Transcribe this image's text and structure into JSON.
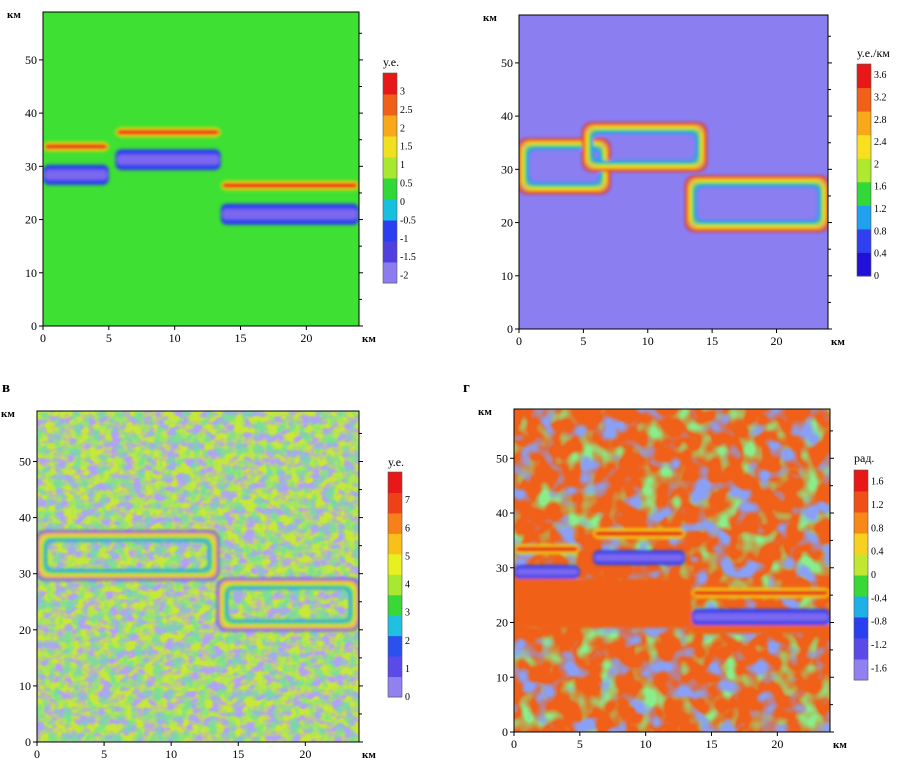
{
  "chart_data": [
    {
      "type": "heatmap",
      "panel_letter": "",
      "x_unit": "км",
      "y_unit": "км",
      "xlim": [
        0,
        24
      ],
      "ylim": [
        0,
        59
      ],
      "x_ticks": [
        "0",
        "5",
        "10",
        "15",
        "20"
      ],
      "y_ticks": [
        "0",
        "10",
        "20",
        "30",
        "40",
        "50"
      ],
      "colorbar": {
        "unit": "у.е.",
        "range": [
          -2.2,
          3.5
        ],
        "ticks": [
          "3",
          "2.5",
          "2",
          "1.5",
          "1",
          "0.5",
          "0",
          "-0.5",
          "-1",
          "-1.5",
          "-2"
        ],
        "colors": [
          "#8c7cf0",
          "#5040e0",
          "#2b3ff0",
          "#18c0e0",
          "#30d838",
          "#a8e830",
          "#f0e020",
          "#f8a818",
          "#f06018",
          "#e81818"
        ]
      },
      "background_color": "#3ee033",
      "texture": "none",
      "bands": [
        {
          "x0": 0,
          "x1": 5,
          "y0": 32.8,
          "y1": 34.6,
          "color": "#f4d810"
        },
        {
          "x0": 0,
          "x1": 5,
          "y0": 26.5,
          "y1": 30.3,
          "color": "#7b68ee"
        },
        {
          "x0": 5.5,
          "x1": 13.5,
          "y0": 35.5,
          "y1": 37.3,
          "color": "#f4d810"
        },
        {
          "x0": 5.5,
          "x1": 13.5,
          "y0": 29.3,
          "y1": 33.2,
          "color": "#7b68ee"
        },
        {
          "x0": 13.5,
          "x1": 24,
          "y0": 25.5,
          "y1": 27.3,
          "color": "#f4d810"
        },
        {
          "x0": 13.5,
          "x1": 24,
          "y0": 19,
          "y1": 23,
          "color": "#7b68ee"
        }
      ]
    },
    {
      "type": "heatmap",
      "panel_letter": "",
      "x_unit": "км",
      "y_unit": "км",
      "xlim": [
        0,
        24
      ],
      "ylim": [
        0,
        59
      ],
      "x_ticks": [
        "0",
        "5",
        "10",
        "15",
        "20"
      ],
      "y_ticks": [
        "0",
        "10",
        "20",
        "30",
        "40",
        "50"
      ],
      "colorbar": {
        "unit": "у.е./км",
        "range": [
          0,
          3.8
        ],
        "ticks": [
          "3.6",
          "3.2",
          "2.8",
          "2.4",
          "2",
          "1.6",
          "1.2",
          "0.8",
          "0.4",
          "0"
        ],
        "colors": [
          "#2010d8",
          "#3040f0",
          "#20a0f0",
          "#30d838",
          "#b0e830",
          "#f8e020",
          "#f8a818",
          "#f06018",
          "#e81818"
        ]
      },
      "background_color": "#8a7ef0",
      "texture": "none",
      "bands": [
        {
          "x0": 0,
          "x1": 7,
          "y0": 25.6,
          "y1": 35.6,
          "color": "#ee2020",
          "ring": true
        },
        {
          "x0": 5,
          "x1": 14.5,
          "y0": 29.8,
          "y1": 38.6,
          "color": "#ee2020",
          "ring": true
        },
        {
          "x0": 13,
          "x1": 24,
          "y0": 18.5,
          "y1": 28.6,
          "color": "#ee2020",
          "ring": true
        }
      ]
    },
    {
      "type": "heatmap",
      "panel_letter": "в",
      "x_unit": "км",
      "y_unit": "км",
      "xlim": [
        0,
        24
      ],
      "ylim": [
        0,
        59
      ],
      "x_ticks": [
        "0",
        "5",
        "10",
        "15",
        "20"
      ],
      "y_ticks": [
        "0",
        "10",
        "20",
        "30",
        "40",
        "50"
      ],
      "colorbar": {
        "unit": "у.е.",
        "range": [
          0,
          8
        ],
        "ticks": [
          "7",
          "6",
          "5",
          "4",
          "3",
          "2",
          "1",
          "0"
        ],
        "colors": [
          "#9080f0",
          "#5a4ae8",
          "#2a50f0",
          "#20c0e0",
          "#38d838",
          "#a8e830",
          "#e8f020",
          "#f8c018",
          "#f88018",
          "#f04018",
          "#e81818"
        ]
      },
      "background_color": "#c8e838",
      "texture": "noise",
      "bands": [
        {
          "x0": 0,
          "x1": 13.5,
          "y0": 29,
          "y1": 37.5,
          "color": "#5a4ae8",
          "ring": true
        },
        {
          "x0": 13.5,
          "x1": 24,
          "y0": 20,
          "y1": 29,
          "color": "#5a4ae8",
          "ring": true
        }
      ]
    },
    {
      "type": "heatmap",
      "panel_letter": "г",
      "x_unit": "км",
      "y_unit": "км",
      "xlim": [
        0,
        24
      ],
      "ylim": [
        0,
        59
      ],
      "x_ticks": [
        "0",
        "5",
        "10",
        "15",
        "20"
      ],
      "y_ticks": [
        "0",
        "10",
        "20",
        "30",
        "40",
        "50"
      ],
      "colorbar": {
        "unit": "рад.",
        "range": [
          -1.8,
          1.8
        ],
        "ticks": [
          "1.6",
          "1.2",
          "0.8",
          "0.4",
          "0",
          "-0.4",
          "-0.8",
          "-1.2",
          "-1.6"
        ],
        "colors": [
          "#9080f0",
          "#5a4ae8",
          "#2a40f0",
          "#20b0e8",
          "#38d838",
          "#c0e830",
          "#f8d020",
          "#f88818",
          "#f05018",
          "#e81818"
        ]
      },
      "background_color": "#f06018",
      "texture": "blobs",
      "bands": [
        {
          "x0": 0,
          "x1": 5,
          "y0": 28,
          "y1": 30.5,
          "color": "#7b68ee"
        },
        {
          "x0": 0,
          "x1": 5,
          "y0": 32.5,
          "y1": 34.3,
          "color": "#f4d810"
        },
        {
          "x0": 6,
          "x1": 13,
          "y0": 30.5,
          "y1": 33.2,
          "color": "#7b68ee"
        },
        {
          "x0": 6,
          "x1": 13,
          "y0": 35.3,
          "y1": 37.2,
          "color": "#f4d810"
        },
        {
          "x0": 13.5,
          "x1": 24,
          "y0": 19.5,
          "y1": 22.5,
          "color": "#7b68ee"
        },
        {
          "x0": 13.5,
          "x1": 24,
          "y0": 24.5,
          "y1": 26.3,
          "color": "#f4d810"
        },
        {
          "x0": 0,
          "x1": 13.5,
          "y0": 19,
          "y1": 28,
          "color": "#f06018",
          "solid": true
        },
        {
          "x0": 13.5,
          "x1": 24,
          "y0": 18,
          "y1": 19.5,
          "color": "#f06018",
          "solid": true
        }
      ]
    }
  ]
}
